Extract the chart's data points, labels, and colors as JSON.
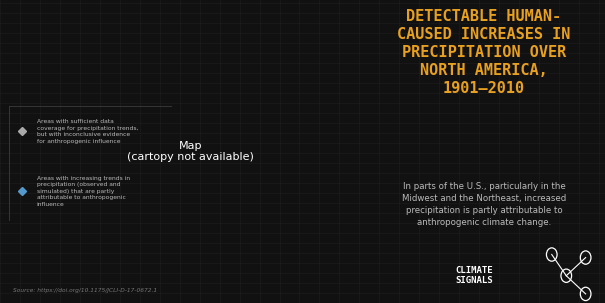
{
  "bg_color": "#111111",
  "grid_color": "#222222",
  "title_lines": [
    "DETECTABLE HUMAN-",
    "CAUSED INCREASES IN",
    "PRECIPITATION OVER",
    "NORTH AMERICA,",
    "1901–2010"
  ],
  "title_color": "#e8a020",
  "title_fontsize": 11.0,
  "subtitle_text": "In parts of the U.S., particularly in the\nMidwest and the Northeast, increased\nprecipitation is partly attributable to\nanthropogenic climate change.",
  "subtitle_color": "#bbbbbb",
  "subtitle_fontsize": 6.2,
  "legend_text1": "Areas with sufficient data\ncoverage for precipitation trends,\nbut with inconclusive evidence\nfor anthropogenic influence",
  "legend_text2": "Areas with increasing trends in\nprecipitation (observed and\nsimulated) that are partly\nattributable to anthropogenic\ninfluence",
  "legend_color1": "#aaaaaa",
  "legend_color2": "#5599cc",
  "source_text": "Source: https://doi.org/10.1175/JCLI-D-17-0672.1",
  "source_color": "#777777",
  "source_fontsize": 4.2,
  "map_land_color": "#dddddd",
  "map_border_color": "#999999",
  "cs_text_color": "#ffffff",
  "cs_fontsize": 6.5
}
